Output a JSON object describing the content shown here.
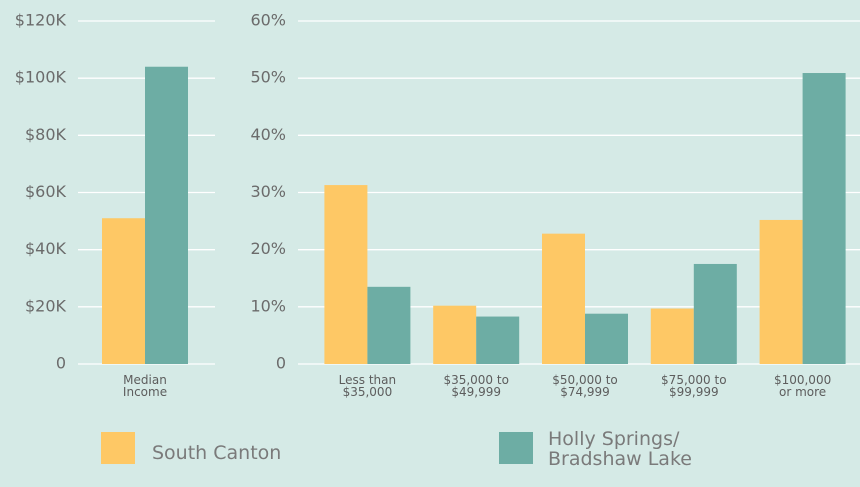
{
  "chart_data": [
    {
      "type": "bar",
      "categories": [
        "Median\nIncome"
      ],
      "series": [
        {
          "name": "South Canton",
          "color": "#fec865",
          "values": [
            51000
          ]
        },
        {
          "name": "Holly Springs/ Bradshaw Lake",
          "color": "#6dada4",
          "values": [
            104000
          ]
        }
      ],
      "ylim": [
        0,
        120000
      ],
      "yticks": [
        0,
        {
          "value": 20000,
          "label": "$20K"
        },
        {
          "value": 40000,
          "label": "$40K"
        },
        {
          "value": 60000,
          "label": "$60K"
        },
        {
          "value": 80000,
          "label": "$80K"
        },
        {
          "value": 100000,
          "label": "$100K"
        },
        {
          "value": 120000,
          "label": "$120K"
        }
      ],
      "grid": true
    },
    {
      "type": "bar",
      "categories": [
        "Less than\n$35,000",
        "$35,000 to\n$49,999",
        "$50,000 to\n$74,999",
        "$75,000 to\n$99,999",
        "$100,000\nor more"
      ],
      "series": [
        {
          "color": "#fec865",
          "values": [
            31.3,
            10.2,
            22.8,
            9.7,
            25.2
          ]
        },
        {
          "color": "#6dada4",
          "values": [
            13.5,
            8.3,
            8.8,
            17.5,
            50.9
          ]
        }
      ],
      "ylim": [
        0,
        60
      ],
      "yticks": [
        0,
        {
          "value": 10,
          "label": "10%"
        },
        {
          "value": 20,
          "label": "20%"
        },
        {
          "value": 30,
          "label": "30%"
        },
        {
          "value": 40,
          "label": "40%"
        },
        {
          "value": 50,
          "label": "50%"
        },
        {
          "value": 60,
          "label": "60%"
        }
      ],
      "grid": true
    }
  ]
}
